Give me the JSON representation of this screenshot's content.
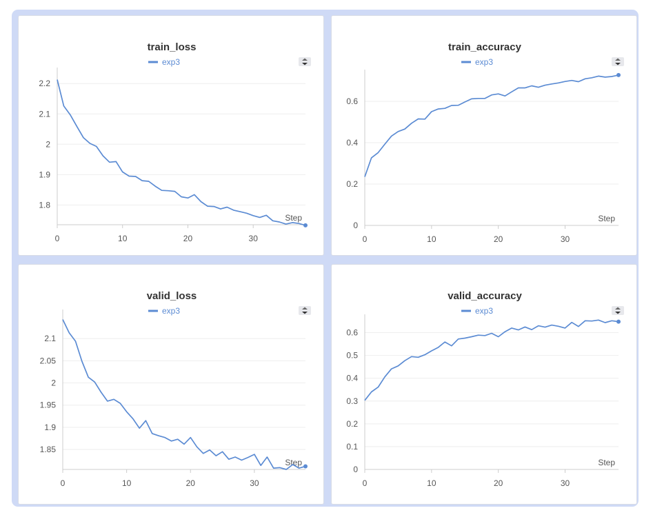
{
  "colors": {
    "series": "#5b8bd3",
    "axis": "#cccccc",
    "grid": "#eeeeee",
    "frame": "#cfdaf6"
  },
  "icons": {
    "legend_toggle": "sort-arrows-icon"
  },
  "chart_data": [
    {
      "type": "line",
      "title": "train_loss",
      "xlabel": "Step",
      "xlim": [
        0,
        38
      ],
      "ylim": [
        1.735,
        2.23
      ],
      "xticks": [
        0,
        10,
        20,
        30
      ],
      "yticks": [
        1.8,
        1.9,
        2,
        2.1,
        2.2
      ],
      "ytick_labels": [
        "1.8",
        "1.9",
        "2",
        "2.1",
        "2.2"
      ],
      "grid": true,
      "legend": "top-center",
      "series": [
        {
          "name": "exp3",
          "x": [
            0,
            1,
            2,
            3,
            4,
            5,
            6,
            7,
            8,
            9,
            10,
            11,
            12,
            13,
            14,
            15,
            16,
            17,
            18,
            19,
            20,
            21,
            22,
            23,
            24,
            25,
            26,
            27,
            28,
            29,
            30,
            31,
            32,
            33,
            34,
            35,
            36,
            37,
            38
          ],
          "values": [
            2.213,
            2.126,
            2.097,
            2.059,
            2.022,
            2.003,
            1.993,
            1.962,
            1.941,
            1.943,
            1.909,
            1.895,
            1.894,
            1.88,
            1.878,
            1.862,
            1.848,
            1.847,
            1.845,
            1.827,
            1.823,
            1.834,
            1.811,
            1.796,
            1.795,
            1.787,
            1.793,
            1.783,
            1.778,
            1.773,
            1.765,
            1.759,
            1.766,
            1.748,
            1.744,
            1.737,
            1.742,
            1.739,
            1.733
          ]
        }
      ]
    },
    {
      "type": "line",
      "title": "train_accuracy",
      "xlabel": "Step",
      "xlim": [
        0,
        38
      ],
      "ylim": [
        0,
        0.72
      ],
      "xticks": [
        0,
        10,
        20,
        30
      ],
      "yticks": [
        0,
        0.2,
        0.4,
        0.6
      ],
      "ytick_labels": [
        "0",
        "0.2",
        "0.4",
        "0.6"
      ],
      "grid": true,
      "legend": "top-center",
      "series": [
        {
          "name": "exp3",
          "x": [
            0,
            1,
            2,
            3,
            4,
            5,
            6,
            7,
            8,
            9,
            10,
            11,
            12,
            13,
            14,
            15,
            16,
            17,
            18,
            19,
            20,
            21,
            22,
            23,
            24,
            25,
            26,
            27,
            28,
            29,
            30,
            31,
            32,
            33,
            34,
            35,
            36,
            37,
            38
          ],
          "values": [
            0.235,
            0.327,
            0.352,
            0.393,
            0.432,
            0.454,
            0.466,
            0.494,
            0.515,
            0.514,
            0.55,
            0.563,
            0.566,
            0.58,
            0.581,
            0.597,
            0.612,
            0.614,
            0.614,
            0.631,
            0.636,
            0.626,
            0.646,
            0.665,
            0.665,
            0.675,
            0.668,
            0.678,
            0.684,
            0.689,
            0.696,
            0.701,
            0.695,
            0.709,
            0.714,
            0.722,
            0.717,
            0.72,
            0.727
          ]
        }
      ]
    },
    {
      "type": "line",
      "title": "valid_loss",
      "xlabel": "Step",
      "xlim": [
        0,
        38
      ],
      "ylim": [
        1.805,
        2.15
      ],
      "xticks": [
        0,
        10,
        20,
        30
      ],
      "yticks": [
        1.85,
        1.9,
        1.95,
        2,
        2.05,
        2.1
      ],
      "ytick_labels": [
        "1.85",
        "1.9",
        "1.95",
        "2",
        "2.05",
        "2.1"
      ],
      "grid": true,
      "legend": "top-center",
      "series": [
        {
          "name": "exp3",
          "x": [
            0,
            1,
            2,
            3,
            4,
            5,
            6,
            7,
            8,
            9,
            10,
            11,
            12,
            13,
            14,
            15,
            16,
            17,
            18,
            19,
            20,
            21,
            22,
            23,
            24,
            25,
            26,
            27,
            28,
            29,
            30,
            31,
            32,
            33,
            34,
            35,
            36,
            37,
            38
          ],
          "values": [
            2.143,
            2.113,
            2.094,
            2.049,
            2.013,
            2.002,
            1.979,
            1.959,
            1.963,
            1.954,
            1.935,
            1.919,
            1.898,
            1.915,
            1.886,
            1.881,
            1.877,
            1.869,
            1.873,
            1.862,
            1.877,
            1.856,
            1.841,
            1.849,
            1.836,
            1.845,
            1.828,
            1.833,
            1.826,
            1.832,
            1.839,
            1.814,
            1.833,
            1.808,
            1.809,
            1.805,
            1.816,
            1.808,
            1.812
          ]
        }
      ]
    },
    {
      "type": "line",
      "title": "valid_accuracy",
      "xlabel": "Step",
      "xlim": [
        0,
        38
      ],
      "ylim": [
        0,
        0.65
      ],
      "xticks": [
        0,
        10,
        20,
        30
      ],
      "yticks": [
        0,
        0.1,
        0.2,
        0.3,
        0.4,
        0.5,
        0.6
      ],
      "ytick_labels": [
        "0",
        "0.1",
        "0.2",
        "0.3",
        "0.4",
        "0.5",
        "0.6"
      ],
      "grid": true,
      "legend": "top-center",
      "series": [
        {
          "name": "exp3",
          "x": [
            0,
            1,
            2,
            3,
            4,
            5,
            6,
            7,
            8,
            9,
            10,
            11,
            12,
            13,
            14,
            15,
            16,
            17,
            18,
            19,
            20,
            21,
            22,
            23,
            24,
            25,
            26,
            27,
            28,
            29,
            30,
            31,
            32,
            33,
            34,
            35,
            36,
            37,
            38
          ],
          "values": [
            0.303,
            0.34,
            0.361,
            0.406,
            0.441,
            0.454,
            0.477,
            0.495,
            0.492,
            0.503,
            0.52,
            0.535,
            0.559,
            0.542,
            0.572,
            0.576,
            0.582,
            0.589,
            0.587,
            0.597,
            0.582,
            0.604,
            0.62,
            0.612,
            0.625,
            0.613,
            0.63,
            0.624,
            0.633,
            0.628,
            0.62,
            0.645,
            0.627,
            0.652,
            0.651,
            0.655,
            0.644,
            0.652,
            0.648
          ]
        }
      ]
    }
  ]
}
